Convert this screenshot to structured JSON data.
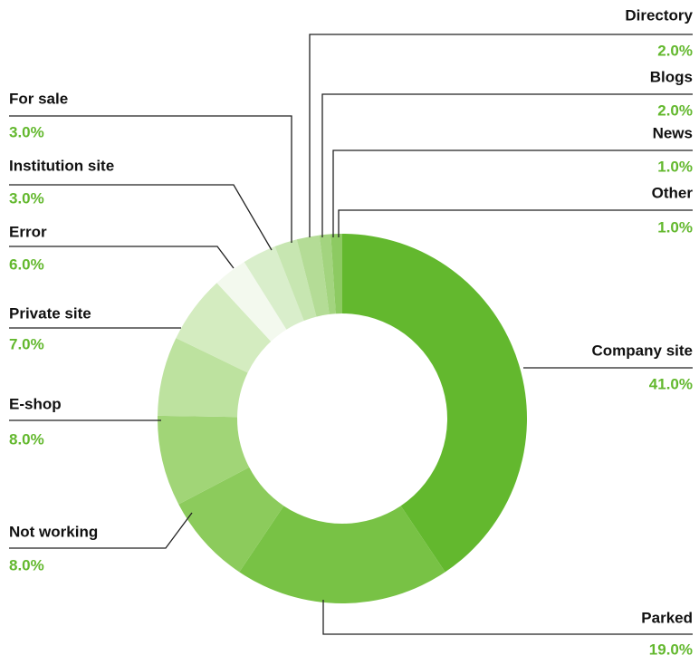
{
  "chart_data": {
    "type": "donut",
    "categories": [
      "Company site",
      "Parked",
      "Not working",
      "E-shop",
      "Private site",
      "Error",
      "Institution site",
      "For sale",
      "Directory",
      "Blogs",
      "News",
      "Other"
    ],
    "values": [
      41,
      19,
      8,
      8,
      7,
      6,
      3,
      3,
      2,
      2,
      1,
      1
    ],
    "value_labels": [
      "41.0%",
      "19.0%",
      "8.0%",
      "8.0%",
      "7.0%",
      "6.0%",
      "3.0%",
      "3.0%",
      "2.0%",
      "2.0%",
      "1.0%",
      "1.0%"
    ],
    "colors": [
      "#63b82e",
      "#78c245",
      "#8ccb5c",
      "#a1d577",
      "#bde29f",
      "#d4ecc0",
      "#f3f9ee",
      "#d9eecb",
      "#c7e6b1",
      "#b4dc96",
      "#a3d47f",
      "#8dca62"
    ]
  }
}
